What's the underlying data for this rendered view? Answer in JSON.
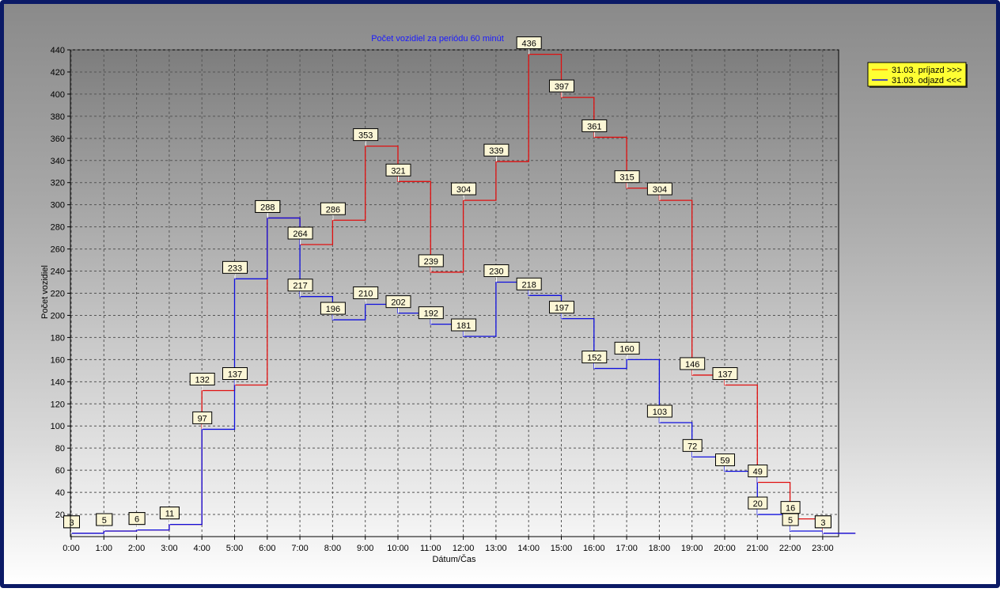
{
  "chart_data": {
    "type": "line",
    "step": true,
    "title": "Počet vozidiel za periódu 60 minút",
    "xlabel": "Dátum/Čas",
    "ylabel": "Počet vozidiel",
    "ylim": [
      0,
      440
    ],
    "yticks": [
      20,
      40,
      60,
      80,
      100,
      120,
      140,
      160,
      180,
      200,
      220,
      240,
      260,
      280,
      300,
      320,
      340,
      360,
      380,
      400,
      420,
      440
    ],
    "categories": [
      "0:00",
      "1:00",
      "2:00",
      "3:00",
      "4:00",
      "5:00",
      "6:00",
      "7:00",
      "8:00",
      "9:00",
      "10:00",
      "11:00",
      "12:00",
      "13:00",
      "14:00",
      "15:00",
      "16:00",
      "17:00",
      "18:00",
      "19:00",
      "20:00",
      "21:00",
      "22:00",
      "23:00"
    ],
    "grid": true,
    "legend_position": "right",
    "series": [
      {
        "name": "31.03.  príjazd >>>",
        "color": "#e01010",
        "values": [
          3,
          5,
          6,
          11,
          132,
          137,
          288,
          264,
          286,
          353,
          321,
          239,
          304,
          339,
          436,
          397,
          361,
          315,
          304,
          146,
          137,
          49,
          16,
          3
        ]
      },
      {
        "name": "31.03.  odjazd <<<",
        "color": "#1010dd",
        "values": [
          3,
          5,
          6,
          11,
          97,
          233,
          288,
          217,
          196,
          210,
          202,
          192,
          181,
          230,
          218,
          197,
          152,
          160,
          103,
          72,
          59,
          20,
          5,
          3
        ]
      }
    ]
  }
}
